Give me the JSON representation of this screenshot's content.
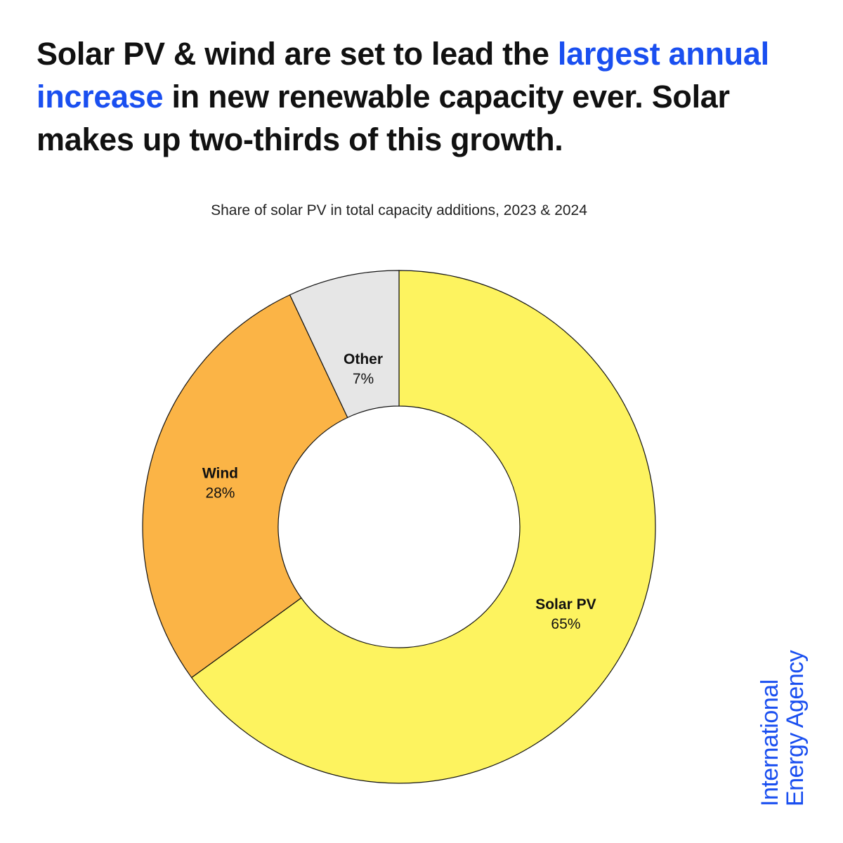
{
  "headline": {
    "before": "Solar PV & wind are set to lead the ",
    "highlight": "largest annual increase",
    "after": " in new renewable capacity ever. Solar makes up two-thirds of this growth."
  },
  "chart_data": {
    "type": "pie",
    "subtitle": "Share of solar PV in total capacity additions, 2023 & 2024",
    "segments": [
      {
        "name": "Solar PV",
        "value": 65,
        "label": "65%",
        "color": "#fdf35f"
      },
      {
        "name": "Wind",
        "value": 28,
        "label": "28%",
        "color": "#fbb446"
      },
      {
        "name": "Other",
        "value": 7,
        "label": "7%",
        "color": "#e6e6e6"
      }
    ]
  },
  "logo": {
    "line1": "International",
    "line2": "Energy Agency",
    "color": "#1a4ff0"
  }
}
